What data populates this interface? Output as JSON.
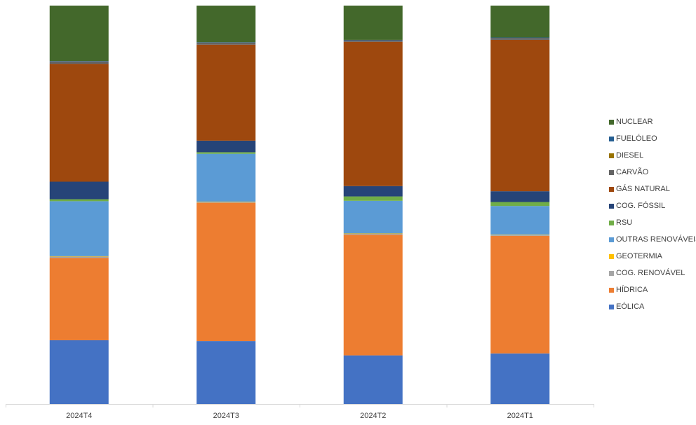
{
  "chart_data": {
    "type": "bar",
    "stacked": true,
    "normalized_100_percent": true,
    "categories": [
      "2024T4",
      "2024T3",
      "2024T2",
      "2024T1"
    ],
    "series": [
      {
        "name": "EÓLICA",
        "color": "#4472C4",
        "values": [
          16.0,
          15.8,
          12.2,
          12.7
        ]
      },
      {
        "name": "HÍDRICA",
        "color": "#ED7D31",
        "values": [
          20.7,
          34.7,
          30.3,
          29.5
        ]
      },
      {
        "name": "COG. RENOVÁVEL",
        "color": "#A5A5A5",
        "values": [
          0.3,
          0.2,
          0.2,
          0.2
        ]
      },
      {
        "name": "GEOTERMIA",
        "color": "#FFC000",
        "values": [
          0.1,
          0.1,
          0.1,
          0.1
        ]
      },
      {
        "name": "OUTRAS RENOVÁVEIS",
        "color": "#5B9BD5",
        "values": [
          13.8,
          12.0,
          8.2,
          7.2
        ]
      },
      {
        "name": "RSU",
        "color": "#70AD47",
        "values": [
          0.5,
          0.4,
          1.1,
          1.0
        ]
      },
      {
        "name": "COG. FÓSSIL",
        "color": "#264478",
        "values": [
          4.4,
          2.9,
          2.6,
          2.7
        ]
      },
      {
        "name": "GÁS NATURAL",
        "color": "#9E480E",
        "values": [
          29.6,
          24.1,
          36.2,
          38.0
        ]
      },
      {
        "name": "CARVÃO",
        "color": "#636363",
        "values": [
          0.6,
          0.5,
          0.4,
          0.5
        ]
      },
      {
        "name": "DIESEL",
        "color": "#997300",
        "values": [
          0.0,
          0.0,
          0.0,
          0.0
        ]
      },
      {
        "name": "FUELÓLEO",
        "color": "#255E91",
        "values": [
          0.1,
          0.1,
          0.1,
          0.1
        ]
      },
      {
        "name": "NUCLEAR",
        "color": "#43682B",
        "values": [
          13.9,
          9.2,
          8.6,
          8.0
        ]
      }
    ],
    "ylim": [
      0,
      100
    ],
    "grid": false,
    "legend_position": "right"
  }
}
